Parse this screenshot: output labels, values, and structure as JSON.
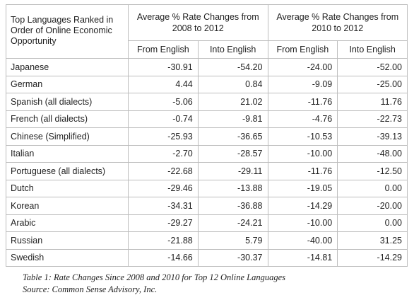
{
  "table": {
    "corner_header": "Top Languages Ranked in Order of Online Economic Opportunity",
    "groups": [
      {
        "label": "Average % Rate Changes from 2008 to 2012"
      },
      {
        "label": "Average % Rate Changes from 2010 to 2012"
      }
    ],
    "subheaders": [
      "From English",
      "Into English",
      "From English",
      "Into English"
    ],
    "rows": [
      {
        "language": "Japanese",
        "values": [
          "-30.91",
          "-54.20",
          "-24.00",
          "-52.00"
        ]
      },
      {
        "language": "German",
        "values": [
          "4.44",
          "0.84",
          "-9.09",
          "-25.00"
        ]
      },
      {
        "language": "Spanish (all dialects)",
        "values": [
          "-5.06",
          "21.02",
          "-11.76",
          "11.76"
        ]
      },
      {
        "language": "French (all dialects)",
        "values": [
          "-0.74",
          "-9.81",
          "-4.76",
          "-22.73"
        ]
      },
      {
        "language": "Chinese (Simplified)",
        "values": [
          "-25.93",
          "-36.65",
          "-10.53",
          "-39.13"
        ]
      },
      {
        "language": "Italian",
        "values": [
          "-2.70",
          "-28.57",
          "-10.00",
          "-48.00"
        ]
      },
      {
        "language": "Portuguese (all dialects)",
        "values": [
          "-22.68",
          "-29.11",
          "-11.76",
          "-12.50"
        ]
      },
      {
        "language": "Dutch",
        "values": [
          "-29.46",
          "-13.88",
          "-19.05",
          "0.00"
        ]
      },
      {
        "language": "Korean",
        "values": [
          "-34.31",
          "-36.88",
          "-14.29",
          "-20.00"
        ]
      },
      {
        "language": "Arabic",
        "values": [
          "-29.27",
          "-24.21",
          "-10.00",
          "0.00"
        ]
      },
      {
        "language": "Russian",
        "values": [
          "-21.88",
          "5.79",
          "-40.00",
          "31.25"
        ]
      },
      {
        "language": "Swedish",
        "values": [
          "-14.66",
          "-30.37",
          "-14.81",
          "-14.29"
        ]
      }
    ]
  },
  "caption": {
    "line1": "Table 1: Rate Changes Since 2008 and 2010 for Top 12 Online Languages",
    "line2": "Source: Common Sense Advisory, Inc."
  }
}
